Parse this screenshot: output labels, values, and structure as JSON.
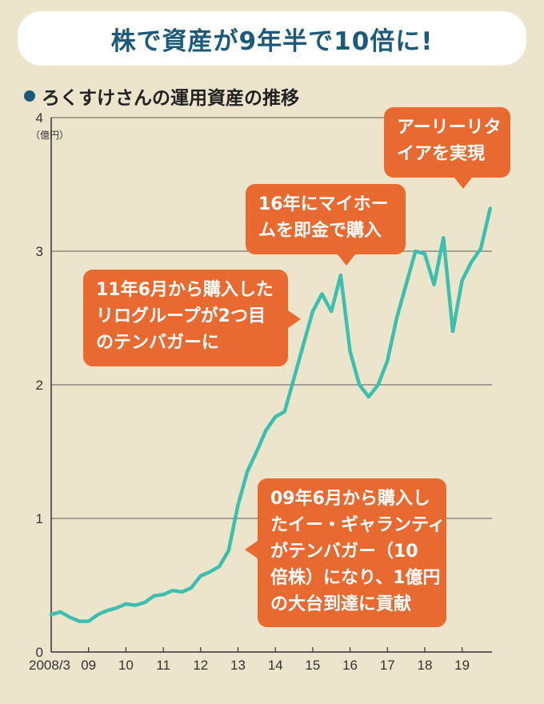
{
  "banner": {
    "title": "株で資産が9年半で10倍に!"
  },
  "subtitle": "ろくすけさんの運用資産の推移",
  "colors": {
    "background": "#ede4cc",
    "line": "#3cbfae",
    "callout": "#e86a30",
    "title": "#1d5a7a"
  },
  "chart_data": {
    "type": "line",
    "title": "ろくすけさんの運用資産の推移",
    "ylabel": "（億円）",
    "ylim": [
      0,
      4
    ],
    "yticks": [
      "0",
      "1",
      "2",
      "3",
      "4"
    ],
    "xticks": [
      "2008/3",
      "09",
      "10",
      "11",
      "12",
      "13",
      "14",
      "15",
      "16",
      "17",
      "18",
      "19"
    ],
    "xlim": [
      2008.0,
      2019.8
    ],
    "grid": true,
    "series": [
      {
        "x": [
          2008.0,
          2008.25,
          2008.5,
          2008.75,
          2009.0,
          2009.25,
          2009.5,
          2009.75,
          2010.0,
          2010.25,
          2010.5,
          2010.75,
          2011.0,
          2011.25,
          2011.5,
          2011.75,
          2012.0,
          2012.25,
          2012.5,
          2012.75,
          2013.0,
          2013.25,
          2013.5,
          2013.75,
          2014.0,
          2014.25,
          2014.5,
          2014.75,
          2015.0,
          2015.25,
          2015.5,
          2015.75,
          2016.0,
          2016.25,
          2016.5,
          2016.75,
          2017.0,
          2017.25,
          2017.5,
          2017.75,
          2018.0,
          2018.25,
          2018.5,
          2018.75,
          2019.0,
          2019.25,
          2019.5,
          2019.75
        ],
        "values": [
          0.28,
          0.3,
          0.26,
          0.23,
          0.23,
          0.28,
          0.31,
          0.33,
          0.36,
          0.35,
          0.37,
          0.42,
          0.43,
          0.46,
          0.45,
          0.48,
          0.57,
          0.6,
          0.64,
          0.76,
          1.1,
          1.35,
          1.5,
          1.66,
          1.76,
          1.8,
          2.05,
          2.3,
          2.55,
          2.68,
          2.55,
          2.82,
          2.25,
          2.0,
          1.91,
          2.0,
          2.18,
          2.5,
          2.75,
          3.0,
          2.98,
          2.75,
          3.1,
          2.4,
          2.78,
          2.92,
          3.02,
          3.32
        ]
      }
    ],
    "annotations": [
      [
        "アーリーリタ",
        "イアを実現"
      ],
      [
        "16年にマイホー",
        "ムを即金で購入"
      ],
      [
        "11年6月から購入した",
        "リログループが2つ目",
        "のテンバガーに"
      ],
      [
        "09年6月から購入し",
        "たイー・ギャランティ",
        "がテンバガー（10",
        "倍株）になり、1億円",
        "の大台到達に貢献"
      ]
    ]
  }
}
